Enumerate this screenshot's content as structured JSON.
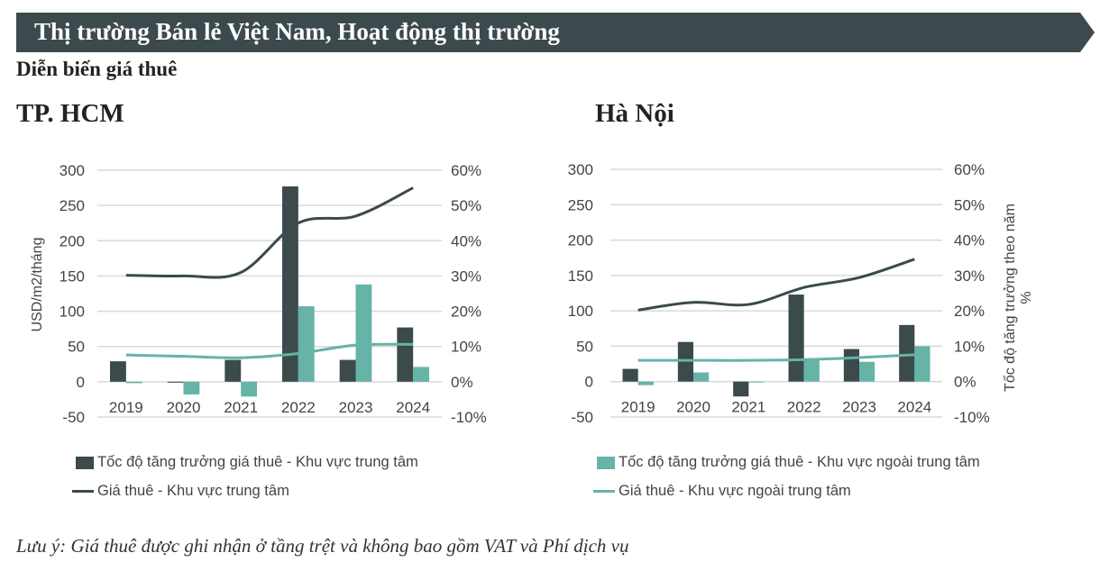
{
  "header": {
    "title": "Thị trường Bán lẻ Việt Nam, Hoạt động thị trường",
    "subtitle": "Diễn biến giá thuê"
  },
  "colors": {
    "banner": "#3d4a4d",
    "dark": "#3b4a4b",
    "teal": "#66b3a8",
    "grid": "#d9d9d9"
  },
  "legend": [
    {
      "label": "Tốc độ tăng trưởng giá thuê - Khu vực trung tâm",
      "kind": "bar",
      "color": "#3b4a4b"
    },
    {
      "label": "Giá thuê - Khu vực trung tâm",
      "kind": "line",
      "color": "#3b4a4b"
    },
    {
      "label": "Tốc độ tăng trưởng giá thuê - Khu vực ngoài trung tâm",
      "kind": "bar",
      "color": "#66b3a8"
    },
    {
      "label": "Giá thuê - Khu vực ngoài trung tâm",
      "kind": "line",
      "color": "#66b3a8"
    }
  ],
  "note": "Lưu ý: Giá thuê được ghi nhận ở tầng trệt và không bao gồm VAT và Phí dịch vụ",
  "chart_data": [
    {
      "type": "bar+line",
      "title": "TP. HCM",
      "categories": [
        "2019",
        "2020",
        "2021",
        "2022",
        "2023",
        "2024"
      ],
      "ylabel": "USD/m2/tháng",
      "y2label": "",
      "ylim": [
        -50,
        300
      ],
      "yticks": [
        "300",
        "250",
        "200",
        "150",
        "100",
        "50",
        "0",
        "-50"
      ],
      "y2lim": [
        -10,
        60
      ],
      "y2ticks": [
        "60%",
        "50%",
        "40%",
        "30%",
        "20%",
        "10%",
        "0%",
        "-10%"
      ],
      "grid": true,
      "bars": [
        {
          "name": "Tốc độ tăng trưởng giá thuê - Khu vực trung tâm",
          "axis": "right",
          "values": [
            5.8,
            0,
            6.2,
            55.4,
            6.2,
            15.4
          ]
        },
        {
          "name": "Tốc độ tăng trưởng giá thuê - Khu vực ngoài trung tâm",
          "axis": "right",
          "values": [
            -0.4,
            -3.6,
            -4.2,
            21.4,
            27.6,
            4.2
          ]
        }
      ],
      "lines": [
        {
          "name": "Giá thuê - Khu vực trung tâm",
          "axis": "left",
          "values": [
            151,
            150,
            155,
            225,
            235,
            275
          ]
        },
        {
          "name": "Giá thuê - Khu vực ngoài trung tâm",
          "axis": "left",
          "values": [
            38,
            36,
            34,
            40,
            52,
            53
          ]
        }
      ]
    },
    {
      "type": "bar+line",
      "title": "Hà Nội",
      "categories": [
        "2019",
        "2020",
        "2021",
        "2022",
        "2023",
        "2024"
      ],
      "ylabel": "",
      "y2label": "Tốc độ tăng trưởng theo năm %",
      "ylim": [
        -50,
        300
      ],
      "yticks": [
        "300",
        "250",
        "200",
        "150",
        "100",
        "50",
        "0",
        "-50"
      ],
      "y2lim": [
        -10,
        60
      ],
      "y2ticks": [
        "60%",
        "50%",
        "40%",
        "30%",
        "20%",
        "10%",
        "0%",
        "-10%"
      ],
      "grid": true,
      "bars": [
        {
          "name": "Tốc độ tăng trưởng giá thuê - Khu vực trung tâm",
          "axis": "right",
          "values": [
            3.6,
            11.2,
            -4.2,
            24.6,
            9.2,
            16.0
          ]
        },
        {
          "name": "Tốc độ tăng trưởng giá thuê - Khu vực ngoài trung tâm",
          "axis": "right",
          "values": [
            -1.0,
            2.6,
            -0.2,
            6.6,
            5.6,
            10.0
          ]
        }
      ],
      "lines": [
        {
          "name": "Giá thuê - Khu vực trung tâm",
          "axis": "left",
          "values": [
            101,
            112,
            109,
            133,
            147,
            173
          ]
        },
        {
          "name": "Giá thuê - Khu vực ngoài trung tâm",
          "axis": "left",
          "values": [
            30,
            30,
            30,
            31,
            34,
            38
          ]
        }
      ]
    }
  ]
}
